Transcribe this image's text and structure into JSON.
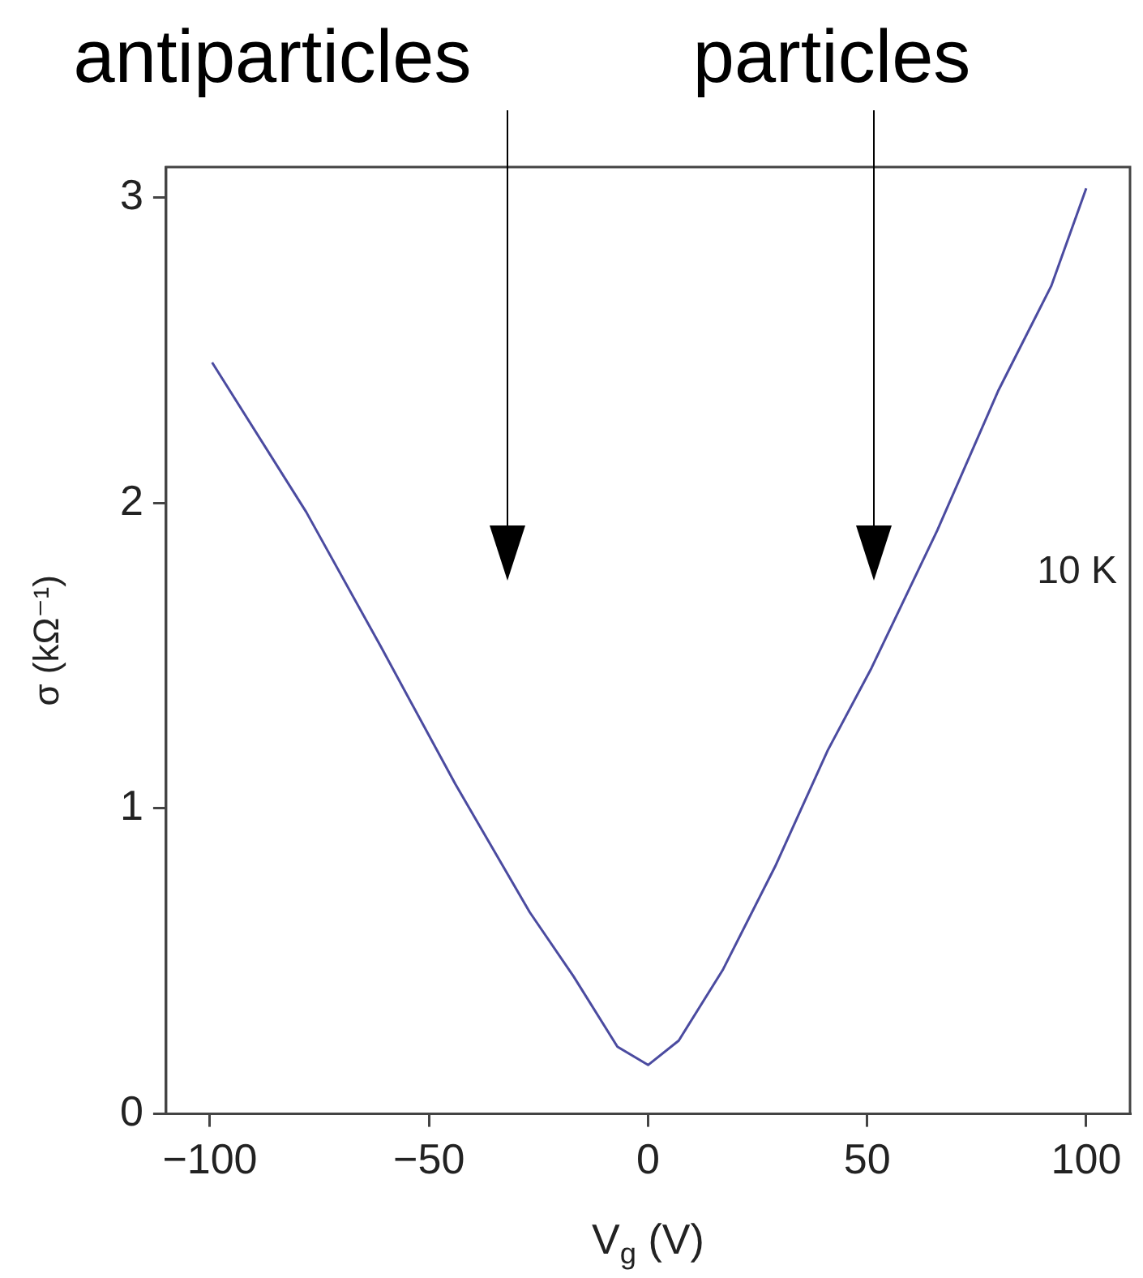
{
  "chart_data": {
    "type": "line",
    "xlabel": "V$_{g}$ (V)",
    "ylabel": "σ (kΩ⁻¹)",
    "x": [
      -99.5,
      -78,
      -61,
      -44,
      -27,
      -17,
      -7,
      0,
      7,
      17,
      29,
      41,
      51,
      66,
      80,
      92,
      100
    ],
    "series": [
      {
        "color": "#4b4ba0",
        "values": [
          2.46,
          1.97,
          1.53,
          1.08,
          0.66,
          0.45,
          0.22,
          0.16,
          0.24,
          0.47,
          0.81,
          1.19,
          1.46,
          1.91,
          2.37,
          2.71,
          3.03
        ]
      }
    ],
    "xlim": [
      -110,
      110
    ],
    "ylim": [
      0,
      3.1
    ],
    "xticks": [
      -100,
      -50,
      0,
      50,
      100
    ],
    "yticks": [
      0,
      1,
      2,
      3
    ],
    "grid": false,
    "legend": false,
    "marker": "none",
    "line_style": "solid",
    "annotations": [
      "antiparticles",
      "particles",
      "10 K"
    ]
  }
}
